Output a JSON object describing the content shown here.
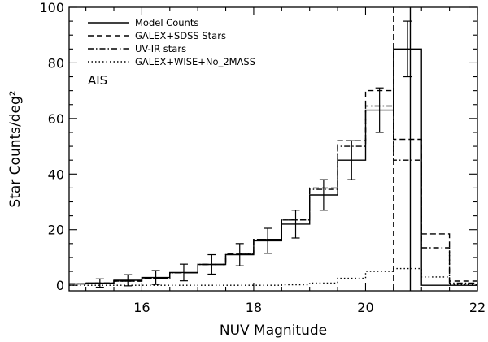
{
  "chart_data": {
    "type": "line",
    "title": "",
    "xlabel": "NUV Magnitude",
    "ylabel": "Star Counts/deg²",
    "xlim": [
      14.7,
      22.0
    ],
    "ylim": [
      -2,
      100
    ],
    "xticks": [
      16,
      18,
      20,
      22
    ],
    "yticks": [
      0,
      20,
      40,
      60,
      80,
      100
    ],
    "grid": false,
    "legend_placement": "top-left",
    "annotation": "AIS",
    "bin_edges": [
      14.7,
      15.0,
      15.5,
      16.0,
      16.5,
      17.0,
      17.5,
      18.0,
      18.5,
      19.0,
      19.5,
      20.0,
      20.5,
      21.0,
      21.5,
      22.0
    ],
    "series": [
      {
        "name": "Model Counts",
        "style": "solid",
        "values": [
          0.5,
          0.8,
          1.8,
          2.8,
          4.6,
          7.5,
          11.0,
          16.0,
          22.0,
          32.5,
          45.0,
          63.0,
          85.0,
          0,
          0
        ]
      },
      {
        "name": "GALEX+SDSS Stars",
        "style": "dashed",
        "values": [
          0.5,
          0.8,
          1.5,
          2.5,
          4.5,
          7.5,
          11.2,
          16.5,
          23.5,
          35.0,
          52.0,
          70.0,
          52.5,
          18.5,
          1.5
        ]
      },
      {
        "name": "UV-IR stars",
        "style": "dashdot",
        "values": [
          0.5,
          0.8,
          1.5,
          2.5,
          4.5,
          7.5,
          11.2,
          16.5,
          23.5,
          34.5,
          50.0,
          64.5,
          45.0,
          13.5,
          0.8
        ]
      },
      {
        "name": "GALEX+WISE+No_2MASS",
        "style": "dotted",
        "values": [
          0,
          0,
          0,
          0,
          0,
          0,
          0,
          0,
          0.2,
          0.8,
          2.5,
          5.0,
          6.0,
          3.0,
          0.2
        ]
      }
    ],
    "error_points": {
      "x": [
        15.25,
        15.75,
        16.25,
        16.75,
        17.25,
        17.75,
        18.25,
        18.75,
        19.25,
        19.75,
        20.25,
        20.75
      ],
      "y": [
        0.8,
        1.8,
        2.8,
        4.6,
        7.5,
        11.0,
        16.0,
        22.0,
        32.5,
        45.0,
        63.0,
        85.0
      ],
      "err": [
        1.5,
        2.0,
        2.5,
        3.0,
        3.5,
        4.0,
        4.5,
        5.0,
        5.5,
        7.0,
        8.0,
        10.0
      ]
    },
    "vertical_lines": [
      {
        "x": 20.5,
        "style": "dashed"
      },
      {
        "x": 20.8,
        "style": "solid"
      }
    ]
  }
}
